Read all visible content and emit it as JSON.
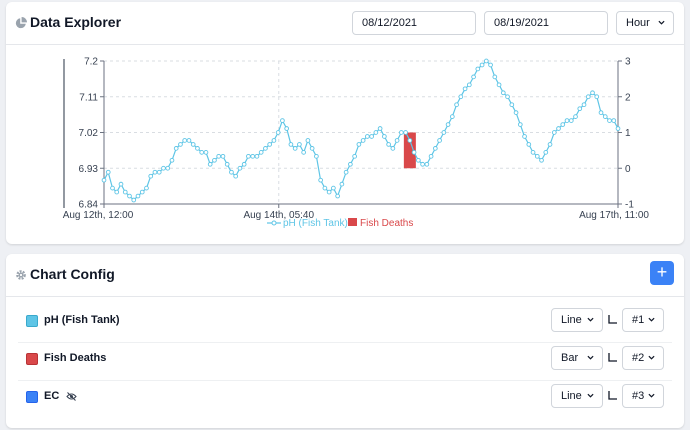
{
  "explorer": {
    "title": "Data Explorer",
    "start_date": "08/12/2021",
    "end_date": "08/19/2021",
    "interval": "Hour"
  },
  "config": {
    "title": "Chart Config",
    "add_label": "+",
    "rows": [
      {
        "name": "pH (Fish Tank)",
        "color": "#5ec5e6",
        "type": "Line",
        "axis": "#1",
        "hidden": false
      },
      {
        "name": "Fish Deaths",
        "color": "#d9484a",
        "type": "Bar",
        "axis": "#2",
        "hidden": false
      },
      {
        "name": "EC",
        "color": "#3b82f6",
        "type": "Line",
        "axis": "#3",
        "hidden": true
      }
    ]
  },
  "colors": {
    "ph_line": "#5ec5e6",
    "deaths_bar": "#d9484a",
    "accent": "#3b82f6"
  },
  "chart_data": {
    "type": "line",
    "x_labels": [
      "Aug 12th, 12:00",
      "Aug 14th, 05:40",
      "Aug 17th, 11:00"
    ],
    "y_left_ticks": [
      "7.2",
      "7.11",
      "7.02",
      "6.93",
      "6.84"
    ],
    "y_left_range": [
      6.84,
      7.2
    ],
    "y_right_ticks": [
      "3",
      "2",
      "1",
      "0",
      "-1"
    ],
    "y_right_range": [
      -1,
      3
    ],
    "grid": true,
    "legend_position": "bottom",
    "series": [
      {
        "name": "pH (Fish Tank)",
        "axis": "left",
        "values": [
          6.9,
          6.92,
          6.88,
          6.87,
          6.89,
          6.87,
          6.86,
          6.85,
          6.86,
          6.87,
          6.88,
          6.91,
          6.92,
          6.92,
          6.93,
          6.93,
          6.95,
          6.98,
          6.99,
          7.0,
          7.0,
          6.99,
          6.98,
          6.97,
          6.97,
          6.94,
          6.95,
          6.96,
          6.96,
          6.94,
          6.92,
          6.91,
          6.93,
          6.94,
          6.96,
          6.96,
          6.96,
          6.97,
          6.98,
          6.99,
          7.0,
          7.02,
          7.05,
          7.03,
          6.99,
          6.98,
          6.99,
          6.97,
          7.0,
          6.98,
          6.96,
          6.9,
          6.88,
          6.87,
          6.88,
          6.86,
          6.89,
          6.92,
          6.94,
          6.96,
          6.99,
          7.0,
          7.01,
          7.01,
          7.02,
          7.03,
          7.01,
          6.99,
          6.98,
          7.0,
          7.02,
          7.02,
          7.0,
          6.97,
          6.95,
          6.94,
          6.94,
          6.96,
          6.98,
          7.0,
          7.02,
          7.04,
          7.06,
          7.09,
          7.11,
          7.13,
          7.14,
          7.16,
          7.18,
          7.19,
          7.2,
          7.19,
          7.16,
          7.14,
          7.12,
          7.11,
          7.09,
          7.07,
          7.04,
          7.01,
          6.99,
          6.97,
          6.96,
          6.95,
          6.97,
          6.99,
          7.02,
          7.03,
          7.04,
          7.05,
          7.05,
          7.06,
          7.08,
          7.09,
          7.11,
          7.12,
          7.11,
          7.07,
          7.06,
          7.05,
          7.05,
          7.03
        ]
      },
      {
        "name": "Fish Deaths",
        "axis": "right",
        "type": "bar",
        "bars": [
          {
            "index": 72,
            "value": 1
          }
        ]
      }
    ]
  }
}
